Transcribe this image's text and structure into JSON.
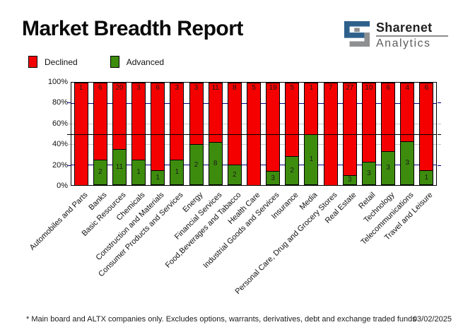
{
  "title": "Market Breadth Report",
  "logo": {
    "name": "Sharenet",
    "subtitle": "Analytics",
    "icon": "sharenet-s-logo",
    "blue": "#2e608c",
    "gray": "#8e9092"
  },
  "legend": {
    "items": [
      {
        "label": "Declined",
        "color": "#f40000"
      },
      {
        "label": "Advanced",
        "color": "#3e8c0e"
      }
    ]
  },
  "chart_data": {
    "type": "bar",
    "stacked": true,
    "normalized_percent": true,
    "title": "Market Breadth Report",
    "xlabel": "",
    "ylabel": "",
    "ylim": [
      0,
      100
    ],
    "y_ticks": [
      "100%",
      "80%",
      "60%",
      "40%",
      "20%",
      "0%"
    ],
    "legend_position": "top-left",
    "categories": [
      "Automobiles and Parts",
      "Banks",
      "Basic Resources",
      "Chemicals",
      "Construction and Materials",
      "Consumer Products and Services",
      "Energy",
      "Financial Services",
      "Food,Beverages and Tabacco",
      "Health Care",
      "Industrial Goods and Services",
      "Insurance",
      "Media",
      "Personal Care, Drug and Grocery Stores",
      "Real Estate",
      "Retail",
      "Technology",
      "Telecommunications",
      "Travel and Leisure"
    ],
    "series": [
      {
        "name": "Declined",
        "color": "#f40000",
        "values": [
          1,
          6,
          20,
          3,
          6,
          3,
          3,
          11,
          8,
          5,
          19,
          5,
          1,
          7,
          27,
          10,
          6,
          4,
          6
        ]
      },
      {
        "name": "Advanced",
        "color": "#3e8c0e",
        "values": [
          0,
          2,
          11,
          1,
          1,
          1,
          2,
          8,
          2,
          0,
          3,
          2,
          1,
          0,
          3,
          3,
          3,
          3,
          1
        ]
      }
    ],
    "gridlines": [
      {
        "percent": 80,
        "color": "#000080",
        "front": false
      },
      {
        "percent": 60,
        "color": "#c6c6c6",
        "front": false
      },
      {
        "percent": 50,
        "color": "#000000",
        "front": true
      },
      {
        "percent": 40,
        "color": "#c6c6c6",
        "front": false
      },
      {
        "percent": 20,
        "color": "#000080",
        "front": false
      }
    ]
  },
  "footer": {
    "note": "* Main board and ALTX companies only. Excludes options, warrants, derivatives, debt and exchange traded funds",
    "date": "03/02/2025"
  }
}
